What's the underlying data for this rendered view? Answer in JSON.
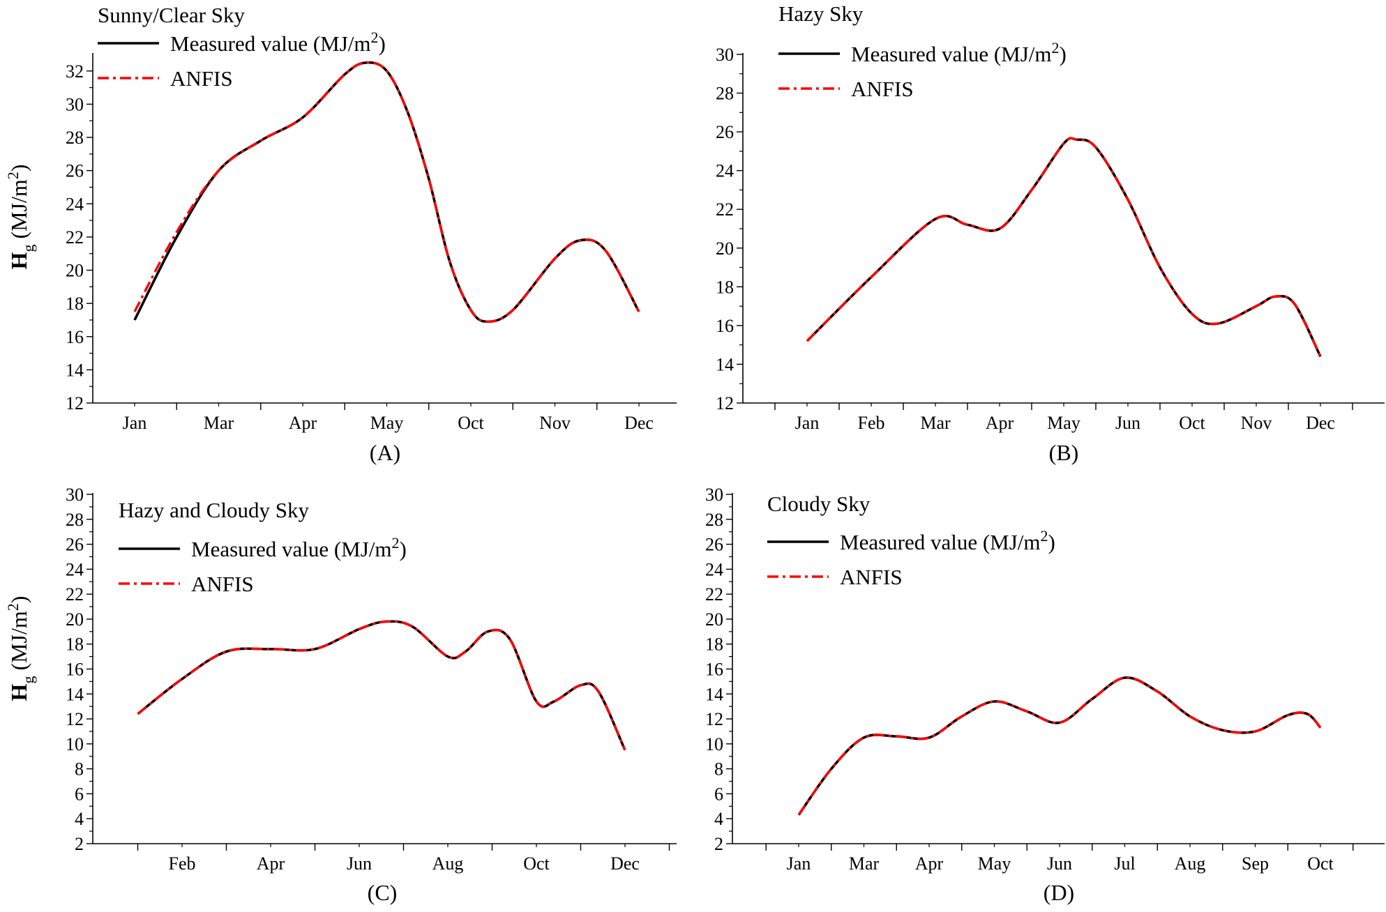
{
  "chart_data": [
    {
      "type": "line",
      "panel_label": "(A)",
      "title": "Sunny/Clear Sky",
      "ylabel_main": "H",
      "ylabel_sub": "g",
      "ylabel_unit": "(MJ/m",
      "ylabel_sup": "2",
      "ylabel_close": ")",
      "xlabel": "",
      "categories": [
        "Jan",
        "Mar",
        "Apr",
        "May",
        "Oct",
        "Nov",
        "Dec"
      ],
      "ylim": [
        12,
        33
      ],
      "yticks": [
        12,
        14,
        16,
        18,
        20,
        22,
        24,
        26,
        28,
        30,
        32
      ],
      "legend_placement": "top-left",
      "series": [
        {
          "name": "Measured value (MJ/m",
          "sup": "2",
          "close": ")",
          "color": "#000000",
          "style": "solid",
          "points": [
            [
              0,
              17.0
            ],
            [
              0.5,
              22.0
            ],
            [
              1,
              26.0
            ],
            [
              1.5,
              27.8
            ],
            [
              2,
              29.2
            ],
            [
              2.5,
              31.8
            ],
            [
              2.75,
              32.5
            ],
            [
              3,
              32.0
            ],
            [
              3.25,
              29.5
            ],
            [
              3.5,
              25.5
            ],
            [
              3.75,
              20.5
            ],
            [
              4,
              17.6
            ],
            [
              4.2,
              16.9
            ],
            [
              4.5,
              17.6
            ],
            [
              5,
              20.7
            ],
            [
              5.3,
              21.8
            ],
            [
              5.6,
              21.2
            ],
            [
              6,
              17.5
            ]
          ]
        },
        {
          "name": "ANFIS",
          "color": "#ff0000",
          "style": "dashdot",
          "points": [
            [
              0,
              17.5
            ],
            [
              0.5,
              22.3
            ],
            [
              1,
              26.0
            ],
            [
              1.5,
              27.8
            ],
            [
              2,
              29.2
            ],
            [
              2.5,
              31.8
            ],
            [
              2.75,
              32.5
            ],
            [
              3,
              32.0
            ],
            [
              3.25,
              29.5
            ],
            [
              3.5,
              25.5
            ],
            [
              3.75,
              20.5
            ],
            [
              4,
              17.6
            ],
            [
              4.2,
              16.9
            ],
            [
              4.5,
              17.6
            ],
            [
              5,
              20.7
            ],
            [
              5.3,
              21.8
            ],
            [
              5.6,
              21.2
            ],
            [
              6,
              17.5
            ]
          ]
        }
      ]
    },
    {
      "type": "line",
      "panel_label": "(B)",
      "title": "Hazy Sky",
      "ylabel_main": "",
      "ylabel_sub": "",
      "ylabel_unit": "",
      "ylabel_sup": "",
      "ylabel_close": "",
      "xlabel": "",
      "categories": [
        "Jan",
        "Feb",
        "Mar",
        "Apr",
        "May",
        "Jun",
        "Oct",
        "Nov",
        "Dec"
      ],
      "ylim": [
        12,
        30
      ],
      "yticks": [
        12,
        14,
        16,
        18,
        20,
        22,
        24,
        26,
        28,
        30
      ],
      "legend_placement": "top-left",
      "series": [
        {
          "name": "Measured value (MJ/m",
          "sup": "2",
          "close": ")",
          "color": "#000000",
          "style": "solid",
          "points": [
            [
              0,
              15.2
            ],
            [
              1,
              18.5
            ],
            [
              2,
              21.5
            ],
            [
              2.5,
              21.2
            ],
            [
              3,
              21.0
            ],
            [
              3.5,
              23.0
            ],
            [
              4,
              25.4
            ],
            [
              4.2,
              25.6
            ],
            [
              4.5,
              25.2
            ],
            [
              5,
              22.5
            ],
            [
              5.5,
              19.0
            ],
            [
              6,
              16.6
            ],
            [
              6.4,
              16.1
            ],
            [
              7,
              17.0
            ],
            [
              7.3,
              17.5
            ],
            [
              7.6,
              17.1
            ],
            [
              8,
              14.4
            ]
          ]
        },
        {
          "name": "ANFIS",
          "color": "#ff0000",
          "style": "dashdot",
          "points": [
            [
              0,
              15.2
            ],
            [
              1,
              18.5
            ],
            [
              2,
              21.5
            ],
            [
              2.5,
              21.2
            ],
            [
              3,
              21.0
            ],
            [
              3.5,
              23.0
            ],
            [
              4,
              25.4
            ],
            [
              4.2,
              25.6
            ],
            [
              4.5,
              25.2
            ],
            [
              5,
              22.5
            ],
            [
              5.5,
              19.0
            ],
            [
              6,
              16.6
            ],
            [
              6.4,
              16.1
            ],
            [
              7,
              17.0
            ],
            [
              7.3,
              17.5
            ],
            [
              7.6,
              17.1
            ],
            [
              8,
              14.4
            ]
          ]
        }
      ]
    },
    {
      "type": "line",
      "panel_label": "(C)",
      "title": "Hazy and Cloudy Sky",
      "ylabel_main": "H",
      "ylabel_sub": "g",
      "ylabel_unit": "(MJ/m",
      "ylabel_sup": "2",
      "ylabel_close": ")",
      "xlabel": "",
      "categories": [
        "Feb",
        "Apr",
        "Jun",
        "Aug",
        "Oct",
        "Dec"
      ],
      "ylim": [
        2,
        30
      ],
      "yticks": [
        2,
        4,
        6,
        8,
        10,
        12,
        14,
        16,
        18,
        20,
        22,
        24,
        26,
        28,
        30
      ],
      "legend_placement": "top-left",
      "series": [
        {
          "name": "Measured value (MJ/m",
          "sup": "2",
          "close": ")",
          "color": "#000000",
          "style": "solid",
          "points": [
            [
              -0.5,
              12.4
            ],
            [
              0,
              15.2
            ],
            [
              0.5,
              17.4
            ],
            [
              1,
              17.6
            ],
            [
              1.5,
              17.6
            ],
            [
              2,
              19.2
            ],
            [
              2.3,
              19.8
            ],
            [
              2.6,
              19.4
            ],
            [
              3,
              17.0
            ],
            [
              3.2,
              17.4
            ],
            [
              3.45,
              19.0
            ],
            [
              3.7,
              18.4
            ],
            [
              4,
              13.4
            ],
            [
              4.2,
              13.4
            ],
            [
              4.5,
              14.7
            ],
            [
              4.7,
              14.2
            ],
            [
              5,
              9.5
            ]
          ]
        },
        {
          "name": "ANFIS",
          "color": "#ff0000",
          "style": "dashdot",
          "points": [
            [
              -0.5,
              12.4
            ],
            [
              0,
              15.2
            ],
            [
              0.5,
              17.4
            ],
            [
              1,
              17.6
            ],
            [
              1.5,
              17.6
            ],
            [
              2,
              19.2
            ],
            [
              2.3,
              19.8
            ],
            [
              2.6,
              19.4
            ],
            [
              3,
              17.0
            ],
            [
              3.2,
              17.4
            ],
            [
              3.45,
              19.0
            ],
            [
              3.7,
              18.4
            ],
            [
              4,
              13.4
            ],
            [
              4.2,
              13.4
            ],
            [
              4.5,
              14.7
            ],
            [
              4.7,
              14.2
            ],
            [
              5,
              9.5
            ]
          ]
        }
      ]
    },
    {
      "type": "line",
      "panel_label": "(D)",
      "title": "Cloudy Sky",
      "ylabel_main": "",
      "ylabel_sub": "",
      "ylabel_unit": "",
      "ylabel_sup": "",
      "ylabel_close": "",
      "xlabel": "",
      "categories": [
        "Jan",
        "Mar",
        "Apr",
        "May",
        "Jun",
        "Jul",
        "Aug",
        "Sep",
        "Oct"
      ],
      "ylim": [
        2,
        30
      ],
      "yticks": [
        2,
        4,
        6,
        8,
        10,
        12,
        14,
        16,
        18,
        20,
        22,
        24,
        26,
        28,
        30
      ],
      "legend_placement": "top-left",
      "series": [
        {
          "name": "Measured value (MJ/m",
          "sup": "2",
          "close": ")",
          "color": "#000000",
          "style": "solid",
          "points": [
            [
              0,
              4.3
            ],
            [
              0.5,
              8.0
            ],
            [
              1,
              10.5
            ],
            [
              1.5,
              10.6
            ],
            [
              2,
              10.5
            ],
            [
              2.5,
              12.2
            ],
            [
              3,
              13.4
            ],
            [
              3.5,
              12.6
            ],
            [
              4,
              11.7
            ],
            [
              4.5,
              13.6
            ],
            [
              5,
              15.3
            ],
            [
              5.5,
              14.2
            ],
            [
              6,
              12.2
            ],
            [
              6.5,
              11.1
            ],
            [
              7,
              11.0
            ],
            [
              7.5,
              12.3
            ],
            [
              7.8,
              12.4
            ],
            [
              8,
              11.3
            ]
          ]
        },
        {
          "name": "ANFIS",
          "color": "#ff0000",
          "style": "dashdot",
          "points": [
            [
              0,
              4.3
            ],
            [
              0.5,
              8.0
            ],
            [
              1,
              10.5
            ],
            [
              1.5,
              10.6
            ],
            [
              2,
              10.5
            ],
            [
              2.5,
              12.2
            ],
            [
              3,
              13.4
            ],
            [
              3.5,
              12.6
            ],
            [
              4,
              11.7
            ],
            [
              4.5,
              13.6
            ],
            [
              5,
              15.3
            ],
            [
              5.5,
              14.2
            ],
            [
              6,
              12.2
            ],
            [
              6.5,
              11.1
            ],
            [
              7,
              11.0
            ],
            [
              7.5,
              12.3
            ],
            [
              7.8,
              12.4
            ],
            [
              8,
              11.3
            ]
          ]
        }
      ]
    }
  ]
}
